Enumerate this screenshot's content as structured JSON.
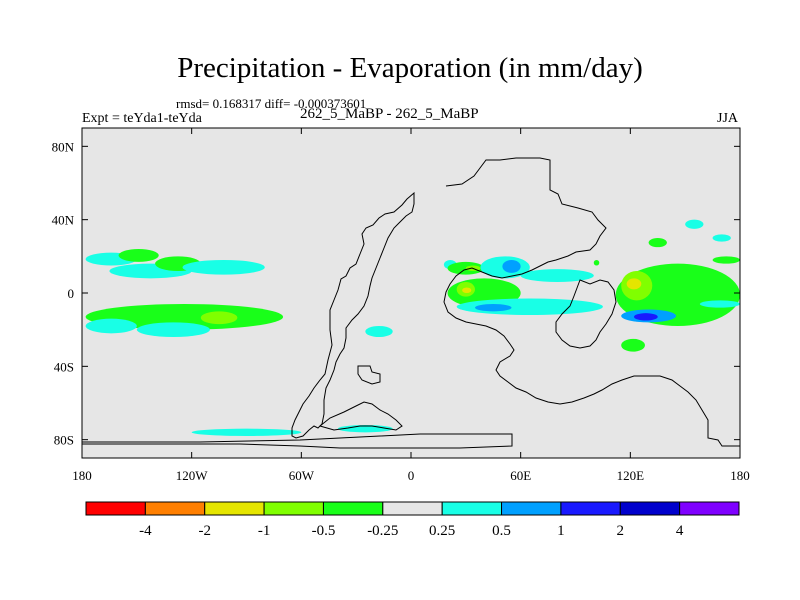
{
  "chart_data": {
    "type": "contour-map",
    "title": "Precipitation - Evaporation (in mm/day)",
    "stats_line": "rmsd= 0.168317 diff= -0.000373601",
    "experiment_label": "Expt = teYda1-teYda",
    "center_label": "262_5_MaBP - 262_5_MaBP",
    "season": "JJA",
    "x_range": [
      -180,
      180
    ],
    "y_range": [
      -90,
      90
    ],
    "x_ticks": [
      {
        "value": -180,
        "label": "180"
      },
      {
        "value": -120,
        "label": "120W"
      },
      {
        "value": -60,
        "label": "60W"
      },
      {
        "value": 0,
        "label": "0"
      },
      {
        "value": 60,
        "label": "60E"
      },
      {
        "value": 120,
        "label": "120E"
      },
      {
        "value": 180,
        "label": "180"
      }
    ],
    "y_ticks": [
      {
        "value": 80,
        "label": "80N"
      },
      {
        "value": 40,
        "label": "40N"
      },
      {
        "value": 0,
        "label": "0"
      },
      {
        "value": -40,
        "label": "40S"
      },
      {
        "value": -80,
        "label": "80S"
      }
    ],
    "colorbar": {
      "colors": [
        "#ff0000",
        "#ff7f00",
        "#e5e500",
        "#80ff00",
        "#19ff19",
        "#e6e6e6",
        "#19ffe6",
        "#00a0ff",
        "#1919ff",
        "#0000cc",
        "#7f00ff"
      ],
      "labels": [
        "-4",
        "-2",
        "-1",
        "-0.5",
        "-0.25",
        "0.25",
        "0.5",
        "1",
        "2",
        "4"
      ]
    },
    "background_color": "#e6e6e6",
    "regions": [
      {
        "level": "0.5",
        "color": "#19ffe6",
        "lon": [
          -178,
          -150
        ],
        "lat": [
          15,
          22
        ]
      },
      {
        "level": "-0.25",
        "color": "#19ff19",
        "lon": [
          -160,
          -138
        ],
        "lat": [
          17,
          24
        ]
      },
      {
        "level": "0.5",
        "color": "#19ffe6",
        "lon": [
          -165,
          -120
        ],
        "lat": [
          8,
          16
        ]
      },
      {
        "level": "-0.25",
        "color": "#19ff19",
        "lon": [
          -140,
          -115
        ],
        "lat": [
          12,
          20
        ]
      },
      {
        "level": "0.5",
        "color": "#19ffe6",
        "lon": [
          -125,
          -80
        ],
        "lat": [
          10,
          18
        ]
      },
      {
        "level": "-0.25",
        "color": "#19ff19",
        "lon": [
          -178,
          -70
        ],
        "lat": [
          -20,
          -6
        ]
      },
      {
        "level": "0.5",
        "color": "#19ffe6",
        "lon": [
          -178,
          -150
        ],
        "lat": [
          -22,
          -14
        ]
      },
      {
        "level": "0.5",
        "color": "#19ffe6",
        "lon": [
          -150,
          -110
        ],
        "lat": [
          -24,
          -16
        ]
      },
      {
        "level": "-0.5",
        "color": "#80ff00",
        "lon": [
          -115,
          -95
        ],
        "lat": [
          -17,
          -10
        ]
      },
      {
        "level": "0.5",
        "color": "#19ffe6",
        "lon": [
          -25,
          -10
        ],
        "lat": [
          -24,
          -18
        ]
      },
      {
        "level": "0.5",
        "color": "#19ffe6",
        "lon": [
          -120,
          -60
        ],
        "lat": [
          -78,
          -74
        ]
      },
      {
        "level": "0.5",
        "color": "#19ffe6",
        "lon": [
          -40,
          -10
        ],
        "lat": [
          -76,
          -72
        ]
      },
      {
        "level": "0.5",
        "color": "#19ffe6",
        "lon": [
          18,
          25
        ],
        "lat": [
          13,
          18
        ]
      },
      {
        "level": "-0.25",
        "color": "#19ff19",
        "lon": [
          20,
          40
        ],
        "lat": [
          10,
          17
        ]
      },
      {
        "level": "-0.5",
        "color": "#80ff00",
        "lon": [
          30,
          38
        ],
        "lat": [
          12,
          15
        ]
      },
      {
        "level": "-0.25",
        "color": "#19ff19",
        "lon": [
          20,
          60
        ],
        "lat": [
          -8,
          8
        ]
      },
      {
        "level": "-0.5",
        "color": "#80ff00",
        "lon": [
          25,
          35
        ],
        "lat": [
          -2,
          6
        ]
      },
      {
        "level": "-1",
        "color": "#e5e500",
        "lon": [
          28,
          33
        ],
        "lat": [
          0,
          3
        ]
      },
      {
        "level": "0.5",
        "color": "#19ffe6",
        "lon": [
          38,
          65
        ],
        "lat": [
          8,
          20
        ]
      },
      {
        "level": "1",
        "color": "#00a0ff",
        "lon": [
          50,
          60
        ],
        "lat": [
          11,
          18
        ]
      },
      {
        "level": "0.5",
        "color": "#19ffe6",
        "lon": [
          60,
          100
        ],
        "lat": [
          6,
          13
        ]
      },
      {
        "level": "0.5",
        "color": "#19ffe6",
        "lon": [
          25,
          105
        ],
        "lat": [
          -12,
          -3
        ]
      },
      {
        "level": "1",
        "color": "#00a0ff",
        "lon": [
          35,
          55
        ],
        "lat": [
          -10,
          -6
        ]
      },
      {
        "level": "-0.25",
        "color": "#19ff19",
        "lon": [
          112,
          180
        ],
        "lat": [
          -18,
          16
        ]
      },
      {
        "level": "-0.5",
        "color": "#80ff00",
        "lon": [
          115,
          132
        ],
        "lat": [
          -4,
          12
        ]
      },
      {
        "level": "-1",
        "color": "#e5e500",
        "lon": [
          118,
          126
        ],
        "lat": [
          2,
          8
        ]
      },
      {
        "level": "1",
        "color": "#00a0ff",
        "lon": [
          115,
          145
        ],
        "lat": [
          -16,
          -9
        ]
      },
      {
        "level": "2",
        "color": "#1919ff",
        "lon": [
          122,
          135
        ],
        "lat": [
          -15,
          -11
        ]
      },
      {
        "level": "0.5",
        "color": "#19ffe6",
        "lon": [
          158,
          180
        ],
        "lat": [
          -8,
          -4
        ]
      },
      {
        "level": "-0.25",
        "color": "#19ff19",
        "lon": [
          165,
          180
        ],
        "lat": [
          16,
          20
        ]
      },
      {
        "level": "-0.25",
        "color": "#19ff19",
        "lon": [
          130,
          140
        ],
        "lat": [
          25,
          30
        ]
      },
      {
        "level": "0.5",
        "color": "#19ffe6",
        "lon": [
          150,
          160
        ],
        "lat": [
          35,
          40
        ]
      },
      {
        "level": "-0.25",
        "color": "#19ff19",
        "lon": [
          115,
          128
        ],
        "lat": [
          -32,
          -25
        ]
      },
      {
        "level": "-0.25",
        "color": "#19ff19",
        "lon": [
          100,
          103
        ],
        "lat": [
          15,
          18
        ]
      },
      {
        "level": "0.5",
        "color": "#19ffe6",
        "lon": [
          165,
          175
        ],
        "lat": [
          28,
          32
        ]
      }
    ]
  }
}
